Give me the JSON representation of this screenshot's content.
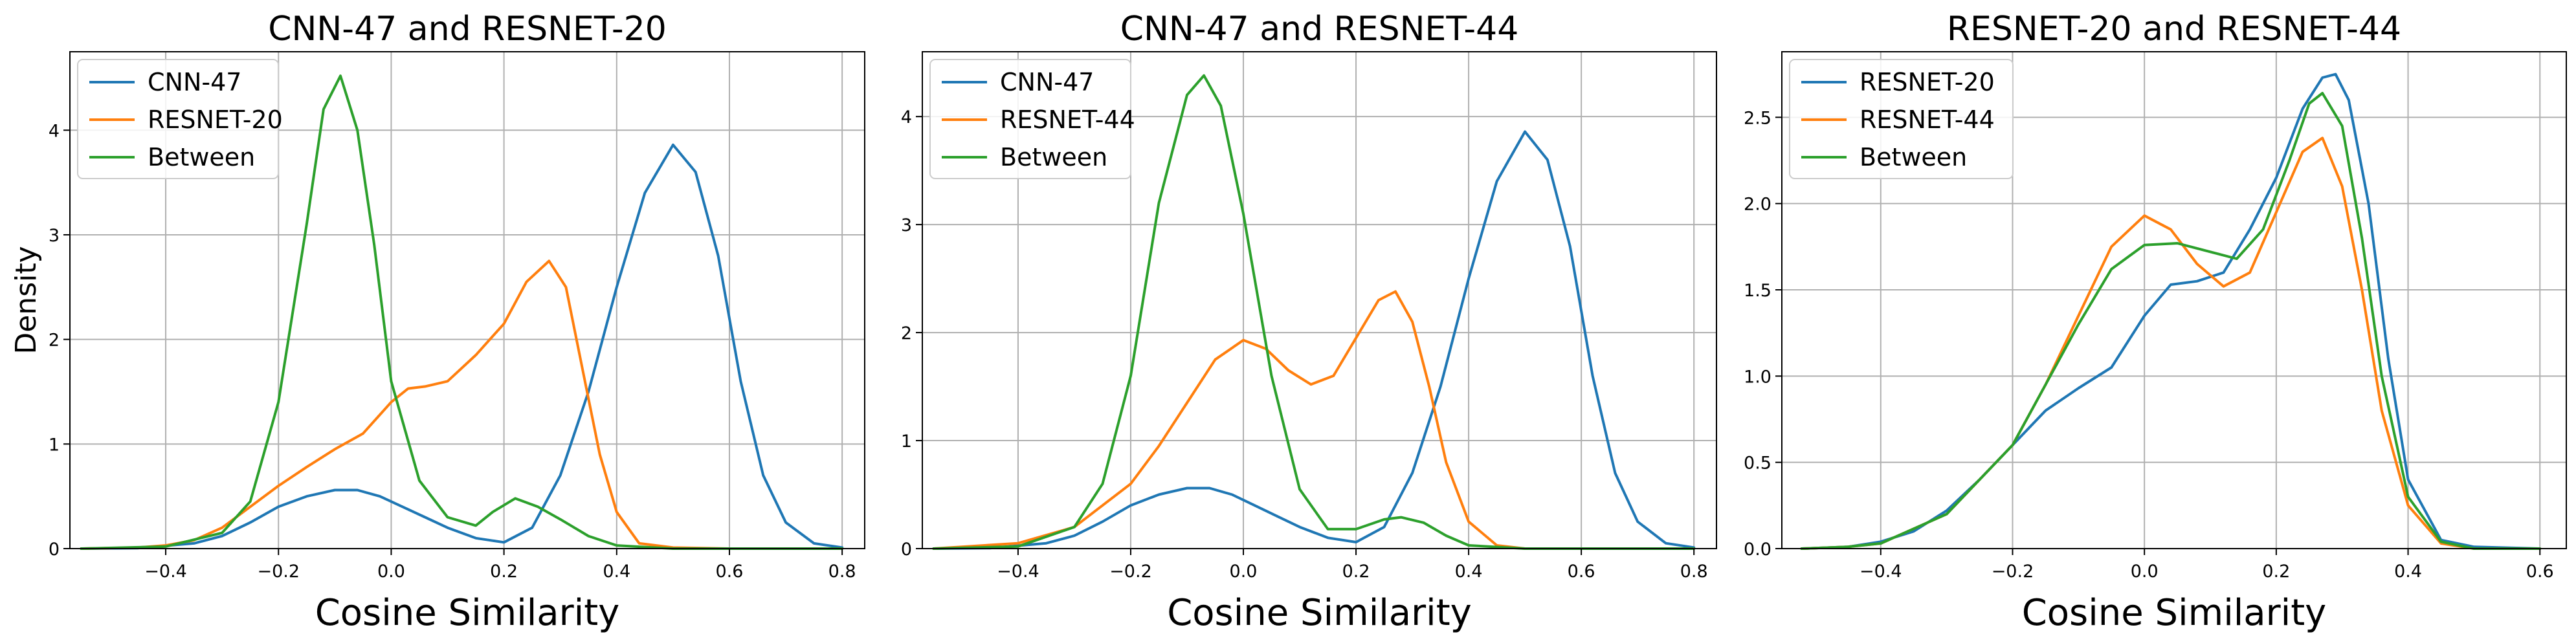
{
  "chart_data": [
    {
      "type": "line",
      "title": "CNN-47 and RESNET-20",
      "xlabel": "Cosine Similarity",
      "ylabel": "Density",
      "xlim": [
        -0.57,
        0.84
      ],
      "ylim": [
        0,
        4.75
      ],
      "xticks": [
        -0.4,
        -0.2,
        0.0,
        0.2,
        0.4,
        0.6,
        0.8
      ],
      "xtick_labels": [
        "−0.4",
        "−0.2",
        "0.0",
        "0.2",
        "0.4",
        "0.6",
        "0.8"
      ],
      "yticks": [
        0,
        1,
        2,
        3,
        4
      ],
      "ytick_labels": [
        "0",
        "1",
        "2",
        "3",
        "4"
      ],
      "grid": true,
      "legend": "top-left",
      "series": [
        {
          "name": "CNN-47",
          "color": "#1f77b4",
          "x": [
            -0.55,
            -0.45,
            -0.35,
            -0.3,
            -0.25,
            -0.2,
            -0.15,
            -0.1,
            -0.06,
            -0.02,
            0.02,
            0.06,
            0.1,
            0.15,
            0.2,
            0.25,
            0.3,
            0.35,
            0.4,
            0.45,
            0.5,
            0.54,
            0.58,
            0.62,
            0.66,
            0.7,
            0.75,
            0.8
          ],
          "y": [
            0,
            0.005,
            0.05,
            0.12,
            0.25,
            0.4,
            0.5,
            0.56,
            0.56,
            0.5,
            0.4,
            0.3,
            0.2,
            0.1,
            0.06,
            0.2,
            0.7,
            1.5,
            2.5,
            3.4,
            3.86,
            3.6,
            2.8,
            1.6,
            0.7,
            0.25,
            0.05,
            0.01
          ]
        },
        {
          "name": "RESNET-20",
          "color": "#ff7f0e",
          "x": [
            -0.55,
            -0.45,
            -0.4,
            -0.35,
            -0.3,
            -0.25,
            -0.2,
            -0.15,
            -0.1,
            -0.05,
            0.0,
            0.03,
            0.06,
            0.1,
            0.15,
            0.2,
            0.24,
            0.28,
            0.31,
            0.34,
            0.37,
            0.4,
            0.44,
            0.5,
            0.6,
            0.8
          ],
          "y": [
            0,
            0.01,
            0.03,
            0.08,
            0.2,
            0.4,
            0.6,
            0.78,
            0.95,
            1.1,
            1.4,
            1.53,
            1.55,
            1.6,
            1.85,
            2.15,
            2.55,
            2.75,
            2.5,
            1.7,
            0.9,
            0.35,
            0.05,
            0.01,
            0,
            0
          ]
        },
        {
          "name": "Between",
          "color": "#2ca02c",
          "x": [
            -0.55,
            -0.4,
            -0.3,
            -0.25,
            -0.2,
            -0.15,
            -0.12,
            -0.09,
            -0.06,
            -0.03,
            0.0,
            0.05,
            0.1,
            0.15,
            0.18,
            0.22,
            0.26,
            0.3,
            0.35,
            0.4,
            0.5,
            0.8
          ],
          "y": [
            0,
            0.02,
            0.15,
            0.45,
            1.4,
            3.1,
            4.2,
            4.52,
            4.0,
            2.9,
            1.6,
            0.65,
            0.3,
            0.22,
            0.35,
            0.48,
            0.4,
            0.28,
            0.12,
            0.03,
            0,
            0
          ]
        }
      ]
    },
    {
      "type": "line",
      "title": "CNN-47 and RESNET-44",
      "xlabel": "Cosine Similarity",
      "ylabel": "",
      "xlim": [
        -0.57,
        0.84
      ],
      "ylim": [
        0,
        4.6
      ],
      "xticks": [
        -0.4,
        -0.2,
        0.0,
        0.2,
        0.4,
        0.6,
        0.8
      ],
      "xtick_labels": [
        "−0.4",
        "−0.2",
        "0.0",
        "0.2",
        "0.4",
        "0.6",
        "0.8"
      ],
      "yticks": [
        0,
        1,
        2,
        3,
        4
      ],
      "ytick_labels": [
        "0",
        "1",
        "2",
        "3",
        "4"
      ],
      "grid": true,
      "legend": "top-left",
      "series": [
        {
          "name": "CNN-47",
          "color": "#1f77b4",
          "x": [
            -0.55,
            -0.45,
            -0.35,
            -0.3,
            -0.25,
            -0.2,
            -0.15,
            -0.1,
            -0.06,
            -0.02,
            0.02,
            0.06,
            0.1,
            0.15,
            0.2,
            0.25,
            0.3,
            0.35,
            0.4,
            0.45,
            0.5,
            0.54,
            0.58,
            0.62,
            0.66,
            0.7,
            0.75,
            0.8
          ],
          "y": [
            0,
            0.005,
            0.05,
            0.12,
            0.25,
            0.4,
            0.5,
            0.56,
            0.56,
            0.5,
            0.4,
            0.3,
            0.2,
            0.1,
            0.06,
            0.2,
            0.7,
            1.5,
            2.5,
            3.4,
            3.86,
            3.6,
            2.8,
            1.6,
            0.7,
            0.25,
            0.05,
            0.01
          ]
        },
        {
          "name": "RESNET-44",
          "color": "#ff7f0e",
          "x": [
            -0.55,
            -0.4,
            -0.3,
            -0.2,
            -0.15,
            -0.1,
            -0.05,
            0.0,
            0.04,
            0.08,
            0.12,
            0.16,
            0.2,
            0.24,
            0.27,
            0.3,
            0.33,
            0.36,
            0.4,
            0.45,
            0.5,
            0.8
          ],
          "y": [
            0,
            0.05,
            0.2,
            0.6,
            0.95,
            1.35,
            1.75,
            1.93,
            1.85,
            1.65,
            1.52,
            1.6,
            1.95,
            2.3,
            2.38,
            2.1,
            1.5,
            0.8,
            0.25,
            0.03,
            0,
            0
          ]
        },
        {
          "name": "Between",
          "color": "#2ca02c",
          "x": [
            -0.55,
            -0.4,
            -0.3,
            -0.25,
            -0.2,
            -0.15,
            -0.1,
            -0.07,
            -0.04,
            0.0,
            0.05,
            0.1,
            0.15,
            0.2,
            0.25,
            0.28,
            0.32,
            0.36,
            0.4,
            0.5,
            0.8
          ],
          "y": [
            0,
            0.02,
            0.2,
            0.6,
            1.6,
            3.2,
            4.2,
            4.38,
            4.1,
            3.1,
            1.6,
            0.55,
            0.18,
            0.18,
            0.27,
            0.29,
            0.24,
            0.12,
            0.03,
            0,
            0
          ]
        }
      ]
    },
    {
      "type": "line",
      "title": "RESNET-20 and RESNET-44",
      "xlabel": "Cosine Similarity",
      "ylabel": "",
      "xlim": [
        -0.55,
        0.64
      ],
      "ylim": [
        0,
        2.88
      ],
      "xticks": [
        -0.4,
        -0.2,
        0.0,
        0.2,
        0.4,
        0.6
      ],
      "xtick_labels": [
        "−0.4",
        "−0.2",
        "0.0",
        "0.2",
        "0.4",
        "0.6"
      ],
      "yticks": [
        0,
        0.5,
        1.0,
        1.5,
        2.0,
        2.5
      ],
      "ytick_labels": [
        "0.0",
        "0.5",
        "1.0",
        "1.5",
        "2.0",
        "2.5"
      ],
      "grid": true,
      "legend": "top-left",
      "series": [
        {
          "name": "RESNET-20",
          "color": "#1f77b4",
          "x": [
            -0.52,
            -0.45,
            -0.4,
            -0.35,
            -0.3,
            -0.25,
            -0.2,
            -0.15,
            -0.1,
            -0.05,
            0.0,
            0.04,
            0.08,
            0.12,
            0.16,
            0.2,
            0.24,
            0.27,
            0.29,
            0.31,
            0.34,
            0.37,
            0.4,
            0.45,
            0.5,
            0.6
          ],
          "y": [
            0,
            0.01,
            0.04,
            0.1,
            0.22,
            0.4,
            0.6,
            0.8,
            0.93,
            1.05,
            1.35,
            1.53,
            1.55,
            1.6,
            1.85,
            2.15,
            2.55,
            2.73,
            2.75,
            2.6,
            2.0,
            1.1,
            0.4,
            0.05,
            0.01,
            0
          ]
        },
        {
          "name": "RESNET-44",
          "color": "#ff7f0e",
          "x": [
            -0.52,
            -0.45,
            -0.4,
            -0.3,
            -0.2,
            -0.15,
            -0.1,
            -0.05,
            0.0,
            0.04,
            0.08,
            0.12,
            0.16,
            0.2,
            0.24,
            0.27,
            0.3,
            0.33,
            0.36,
            0.4,
            0.45,
            0.5,
            0.6
          ],
          "y": [
            0,
            0.01,
            0.03,
            0.2,
            0.6,
            0.95,
            1.35,
            1.75,
            1.93,
            1.85,
            1.65,
            1.52,
            1.6,
            1.95,
            2.3,
            2.38,
            2.1,
            1.5,
            0.8,
            0.25,
            0.03,
            0,
            0
          ]
        },
        {
          "name": "Between",
          "color": "#2ca02c",
          "x": [
            -0.52,
            -0.45,
            -0.4,
            -0.3,
            -0.2,
            -0.15,
            -0.1,
            -0.05,
            0.0,
            0.05,
            0.1,
            0.14,
            0.18,
            0.22,
            0.25,
            0.27,
            0.3,
            0.33,
            0.36,
            0.4,
            0.45,
            0.5,
            0.6
          ],
          "y": [
            0,
            0.01,
            0.03,
            0.2,
            0.6,
            0.95,
            1.3,
            1.62,
            1.76,
            1.77,
            1.72,
            1.68,
            1.85,
            2.25,
            2.58,
            2.64,
            2.45,
            1.8,
            1.0,
            0.3,
            0.04,
            0,
            0
          ]
        }
      ]
    }
  ]
}
